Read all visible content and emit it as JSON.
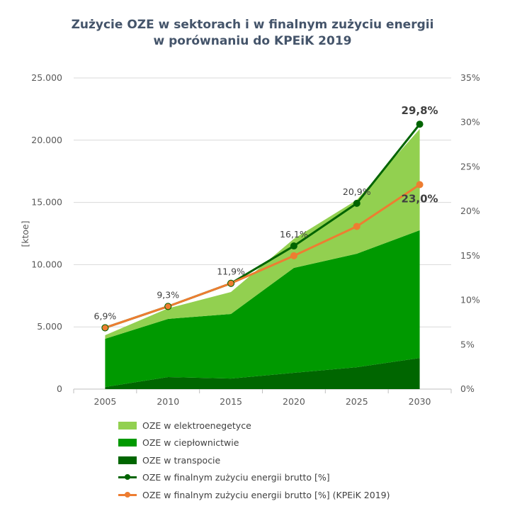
{
  "chart_data": {
    "type": "area",
    "title": "Zużycie OZE w sektorach i w finalnym zużyciu energii",
    "subtitle": "w porównaniu do KPEiK 2019",
    "ylabel": "[ktoe]",
    "categories": [
      "2005",
      "2010",
      "2015",
      "2020",
      "2025",
      "2030"
    ],
    "ylim": [
      0,
      25000
    ],
    "yticks": [
      "0",
      "5.000",
      "10.000",
      "15.000",
      "20.000",
      "25.000"
    ],
    "y2lim": [
      0,
      35
    ],
    "y2ticks": [
      "0%",
      "5%",
      "10%",
      "15%",
      "20%",
      "25%",
      "30%",
      "35%"
    ],
    "grid": true,
    "legend_position": "bottom",
    "stacked_series": [
      {
        "name": "OZE w transpocie",
        "color": "#006600",
        "values": [
          170,
          970,
          850,
          1310,
          1760,
          2500
        ]
      },
      {
        "name": "OZE w ciepłownictwie",
        "color": "#009900",
        "values": [
          3870,
          4670,
          5190,
          8430,
          9120,
          10260
        ]
      },
      {
        "name": "OZE w elektroenegetyce",
        "color": "#92d050",
        "values": [
          290,
          850,
          1760,
          2330,
          4320,
          8140
        ]
      }
    ],
    "line_series": [
      {
        "name": "OZE w finalnym zużyciu energii brutto [%]",
        "color": "#006400",
        "values": [
          6.9,
          9.3,
          11.9,
          16.1,
          20.9,
          29.8
        ],
        "labels": [
          "6,9%",
          "9,3%",
          "11,9%",
          "16,1%",
          "20,9%",
          "29,8%"
        ]
      },
      {
        "name": "OZE w finalnym zużyciu energii brutto [%] (KPEiK 2019)",
        "color": "#ed7d31",
        "values": [
          6.9,
          9.3,
          11.9,
          15.0,
          18.3,
          23.0
        ],
        "labels": [
          "",
          "",
          "",
          "",
          "",
          "23,0%"
        ]
      }
    ]
  }
}
